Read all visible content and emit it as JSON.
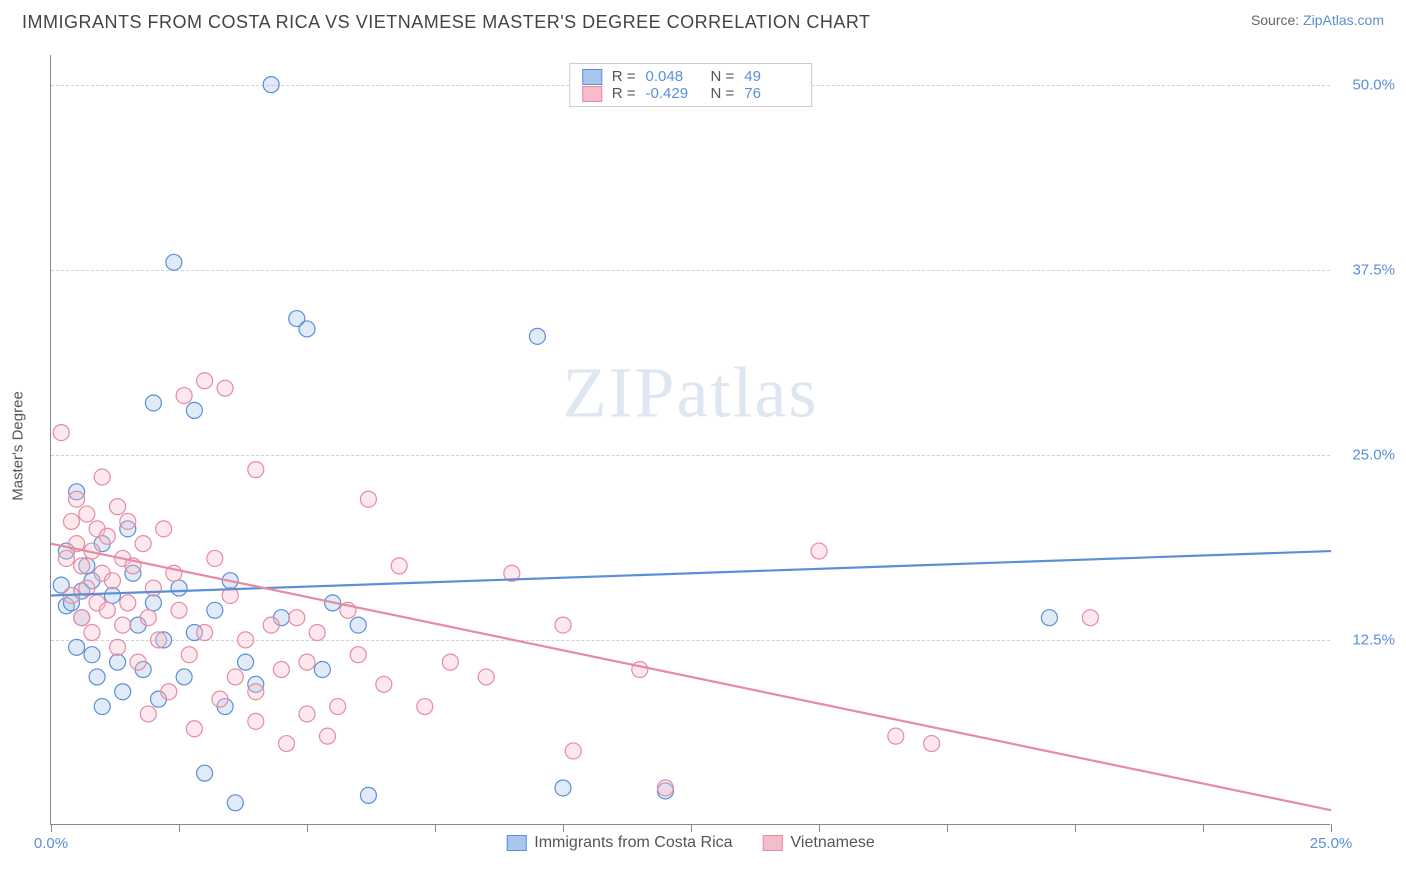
{
  "header": {
    "title": "IMMIGRANTS FROM COSTA RICA VS VIETNAMESE MASTER'S DEGREE CORRELATION CHART",
    "source_label": "Source:",
    "source_name": "ZipAtlas.com"
  },
  "watermark": {
    "zip": "ZIP",
    "atlas": "atlas"
  },
  "chart": {
    "type": "scatter",
    "ylabel": "Master's Degree",
    "xlim": [
      0,
      25
    ],
    "ylim": [
      0,
      52
    ],
    "xtick_positions": [
      0,
      2.5,
      5,
      7.5,
      10,
      12.5,
      15,
      17.5,
      20,
      22.5,
      25
    ],
    "xtick_labels": {
      "0": "0.0%",
      "25": "25.0%"
    },
    "ytick_positions": [
      12.5,
      25,
      37.5,
      50
    ],
    "ytick_labels": [
      "12.5%",
      "25.0%",
      "37.5%",
      "50.0%"
    ],
    "background_color": "#ffffff",
    "grid_color": "#d0d0d0",
    "axis_color": "#888888",
    "marker_radius": 8,
    "marker_stroke_width": 1.2,
    "marker_fill_opacity": 0.35,
    "line_width": 2.2,
    "series": [
      {
        "key": "costa_rica",
        "label": "Immigrants from Costa Rica",
        "color_stroke": "#5b8fd6",
        "color_fill": "#a9c7ec",
        "R": "0.048",
        "N": "49",
        "trend": {
          "x1": 0,
          "y1": 15.5,
          "x2": 25,
          "y2": 18.5
        },
        "points": [
          [
            0.2,
            16.2
          ],
          [
            0.3,
            14.8
          ],
          [
            0.3,
            18.5
          ],
          [
            0.4,
            15.0
          ],
          [
            0.5,
            22.5
          ],
          [
            0.5,
            12.0
          ],
          [
            0.6,
            15.8
          ],
          [
            0.6,
            14.0
          ],
          [
            0.7,
            17.5
          ],
          [
            0.8,
            11.5
          ],
          [
            0.8,
            16.5
          ],
          [
            0.9,
            10.0
          ],
          [
            1.0,
            19.0
          ],
          [
            1.0,
            8.0
          ],
          [
            1.2,
            15.5
          ],
          [
            1.3,
            11.0
          ],
          [
            1.4,
            9.0
          ],
          [
            1.5,
            20.0
          ],
          [
            1.6,
            17.0
          ],
          [
            1.7,
            13.5
          ],
          [
            1.8,
            10.5
          ],
          [
            2.0,
            15.0
          ],
          [
            2.0,
            28.5
          ],
          [
            2.1,
            8.5
          ],
          [
            2.2,
            12.5
          ],
          [
            2.4,
            38.0
          ],
          [
            2.5,
            16.0
          ],
          [
            2.6,
            10.0
          ],
          [
            2.8,
            13.0
          ],
          [
            2.8,
            28.0
          ],
          [
            3.0,
            3.5
          ],
          [
            3.2,
            14.5
          ],
          [
            3.4,
            8.0
          ],
          [
            3.5,
            16.5
          ],
          [
            3.6,
            1.5
          ],
          [
            3.8,
            11.0
          ],
          [
            4.0,
            9.5
          ],
          [
            4.3,
            50.0
          ],
          [
            4.5,
            14.0
          ],
          [
            4.8,
            34.2
          ],
          [
            5.0,
            33.5
          ],
          [
            5.3,
            10.5
          ],
          [
            5.5,
            15.0
          ],
          [
            6.0,
            13.5
          ],
          [
            6.2,
            2.0
          ],
          [
            9.5,
            33.0
          ],
          [
            10.0,
            2.5
          ],
          [
            12.0,
            2.3
          ],
          [
            19.5,
            14.0
          ]
        ]
      },
      {
        "key": "vietnamese",
        "label": "Vietnamese",
        "color_stroke": "#e68ba4",
        "color_fill": "#f5bccb",
        "R": "-0.429",
        "N": "76",
        "trend": {
          "x1": 0,
          "y1": 19.0,
          "x2": 25,
          "y2": 1.0
        },
        "points": [
          [
            0.2,
            26.5
          ],
          [
            0.3,
            18.0
          ],
          [
            0.4,
            20.5
          ],
          [
            0.4,
            15.5
          ],
          [
            0.5,
            19.0
          ],
          [
            0.5,
            22.0
          ],
          [
            0.6,
            17.5
          ],
          [
            0.6,
            14.0
          ],
          [
            0.7,
            21.0
          ],
          [
            0.7,
            16.0
          ],
          [
            0.8,
            18.5
          ],
          [
            0.8,
            13.0
          ],
          [
            0.9,
            20.0
          ],
          [
            0.9,
            15.0
          ],
          [
            1.0,
            23.5
          ],
          [
            1.0,
            17.0
          ],
          [
            1.1,
            19.5
          ],
          [
            1.1,
            14.5
          ],
          [
            1.2,
            16.5
          ],
          [
            1.3,
            21.5
          ],
          [
            1.3,
            12.0
          ],
          [
            1.4,
            18.0
          ],
          [
            1.4,
            13.5
          ],
          [
            1.5,
            20.5
          ],
          [
            1.5,
            15.0
          ],
          [
            1.6,
            17.5
          ],
          [
            1.7,
            11.0
          ],
          [
            1.8,
            19.0
          ],
          [
            1.9,
            14.0
          ],
          [
            1.9,
            7.5
          ],
          [
            2.0,
            16.0
          ],
          [
            2.1,
            12.5
          ],
          [
            2.2,
            20.0
          ],
          [
            2.3,
            9.0
          ],
          [
            2.4,
            17.0
          ],
          [
            2.5,
            14.5
          ],
          [
            2.6,
            29.0
          ],
          [
            2.7,
            11.5
          ],
          [
            2.8,
            6.5
          ],
          [
            3.0,
            30.0
          ],
          [
            3.0,
            13.0
          ],
          [
            3.2,
            18.0
          ],
          [
            3.3,
            8.5
          ],
          [
            3.4,
            29.5
          ],
          [
            3.5,
            15.5
          ],
          [
            3.6,
            10.0
          ],
          [
            3.8,
            12.5
          ],
          [
            4.0,
            24.0
          ],
          [
            4.0,
            9.0
          ],
          [
            4.0,
            7.0
          ],
          [
            4.3,
            13.5
          ],
          [
            4.5,
            10.5
          ],
          [
            4.6,
            5.5
          ],
          [
            4.8,
            14.0
          ],
          [
            5.0,
            11.0
          ],
          [
            5.0,
            7.5
          ],
          [
            5.2,
            13.0
          ],
          [
            5.4,
            6.0
          ],
          [
            5.6,
            8.0
          ],
          [
            5.8,
            14.5
          ],
          [
            6.0,
            11.5
          ],
          [
            6.2,
            22.0
          ],
          [
            6.5,
            9.5
          ],
          [
            6.8,
            17.5
          ],
          [
            7.3,
            8.0
          ],
          [
            7.8,
            11.0
          ],
          [
            8.5,
            10.0
          ],
          [
            9.0,
            17.0
          ],
          [
            10.0,
            13.5
          ],
          [
            10.2,
            5.0
          ],
          [
            11.5,
            10.5
          ],
          [
            12.0,
            2.5
          ],
          [
            15.0,
            18.5
          ],
          [
            16.5,
            6.0
          ],
          [
            17.2,
            5.5
          ],
          [
            20.3,
            14.0
          ]
        ]
      }
    ]
  },
  "legend_top": {
    "r_label": "R =",
    "n_label": "N ="
  }
}
